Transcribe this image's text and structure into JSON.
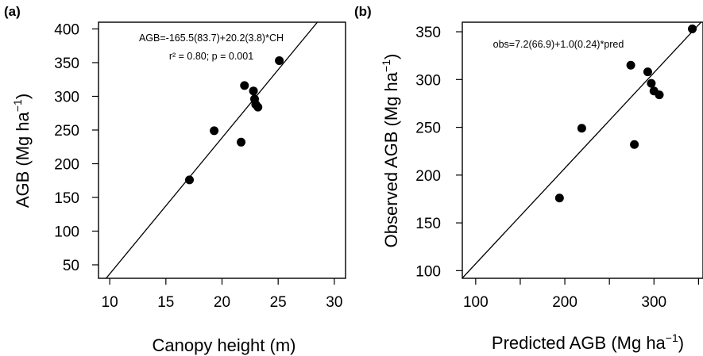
{
  "chart_data": [
    {
      "type": "scatter",
      "panel_label": "(a)",
      "xlabel": "Canopy height (m)",
      "ylabel": "AGB (Mg ha",
      "ylabel_sup": "−1",
      "ylabel_close": ")",
      "xlim": [
        9,
        31
      ],
      "ylim": [
        30,
        410
      ],
      "xticks": [
        10,
        15,
        20,
        25,
        30
      ],
      "yticks": [
        50,
        100,
        150,
        200,
        250,
        300,
        350,
        400
      ],
      "grid": false,
      "legend": "none",
      "annotations": [
        "AGB=-165.5(83.7)+20.2(3.8)*CH",
        "r² = 0.80; p = 0.001"
      ],
      "fit_line": {
        "intercept": -165.5,
        "slope": 20.2
      },
      "points": [
        {
          "x": 17.1,
          "y": 176
        },
        {
          "x": 19.3,
          "y": 249
        },
        {
          "x": 21.7,
          "y": 232
        },
        {
          "x": 22.0,
          "y": 316
        },
        {
          "x": 22.8,
          "y": 308
        },
        {
          "x": 22.9,
          "y": 296
        },
        {
          "x": 23.0,
          "y": 288
        },
        {
          "x": 23.2,
          "y": 284
        },
        {
          "x": 25.1,
          "y": 353
        }
      ]
    },
    {
      "type": "scatter",
      "panel_label": "(b)",
      "xlabel": "Predicted AGB (Mg ha",
      "xlabel_sup": "−1",
      "xlabel_close": ")",
      "ylabel": "Observed AGB (Mg ha",
      "ylabel_sup": "−1",
      "ylabel_close": ")",
      "xlim": [
        85,
        355
      ],
      "ylim": [
        92,
        360
      ],
      "xticks": [
        100,
        150,
        200,
        250,
        300,
        350
      ],
      "xtick_labels": [
        "100",
        "",
        "200",
        "",
        "300",
        ""
      ],
      "yticks": [
        100,
        150,
        200,
        250,
        300,
        350
      ],
      "grid": false,
      "legend": "none",
      "annotations": [
        "obs=7.2(66.9)+1.0(0.24)*pred"
      ],
      "fit_line": {
        "intercept": 7.2,
        "slope": 1.0
      },
      "points": [
        {
          "x": 194,
          "y": 176
        },
        {
          "x": 219,
          "y": 249
        },
        {
          "x": 274,
          "y": 315
        },
        {
          "x": 278,
          "y": 232
        },
        {
          "x": 293,
          "y": 308
        },
        {
          "x": 297,
          "y": 296
        },
        {
          "x": 300,
          "y": 288
        },
        {
          "x": 306,
          "y": 284
        },
        {
          "x": 343,
          "y": 353
        }
      ]
    }
  ]
}
